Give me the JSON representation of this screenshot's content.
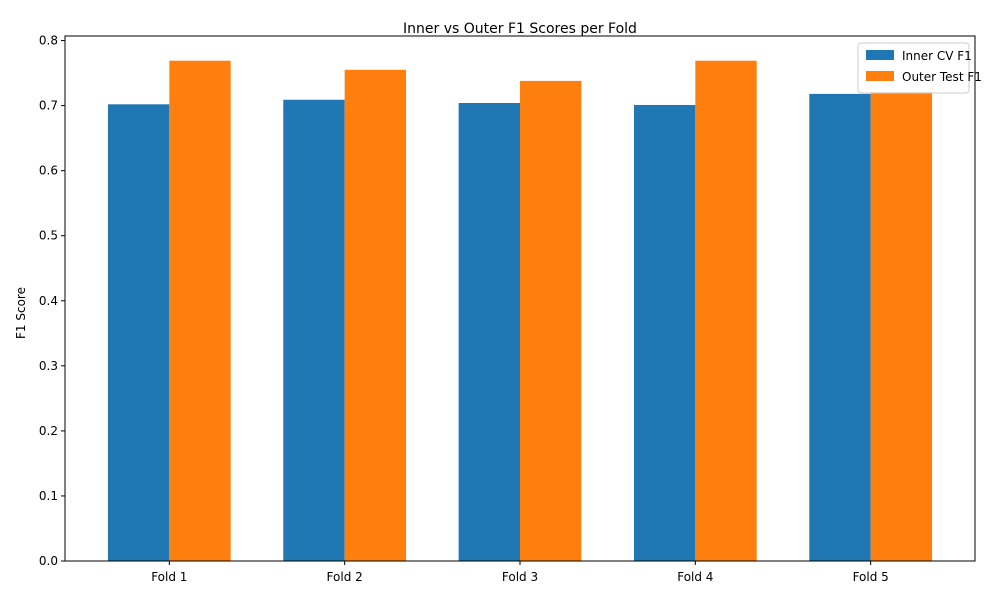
{
  "chart_data": {
    "type": "bar",
    "title": "Inner vs Outer F1 Scores per Fold",
    "xlabel": "",
    "ylabel": "F1 Score",
    "categories": [
      "Fold 1",
      "Fold 2",
      "Fold 3",
      "Fold 4",
      "Fold 5"
    ],
    "series": [
      {
        "name": "Inner CV F1",
        "values": [
          0.702,
          0.709,
          0.704,
          0.701,
          0.718
        ],
        "color": "#1f77b4"
      },
      {
        "name": "Outer Test F1",
        "values": [
          0.769,
          0.755,
          0.738,
          0.769,
          0.721
        ],
        "color": "#ff7f0e"
      }
    ],
    "ylim": [
      0,
      0.807
    ],
    "yticks": [
      0.0,
      0.1,
      0.2,
      0.3,
      0.4,
      0.5,
      0.6,
      0.7,
      0.8
    ],
    "ytick_labels": [
      "0.0",
      "0.1",
      "0.2",
      "0.3",
      "0.4",
      "0.5",
      "0.6",
      "0.7",
      "0.8"
    ],
    "grid": false,
    "legend_position": "top-right"
  }
}
